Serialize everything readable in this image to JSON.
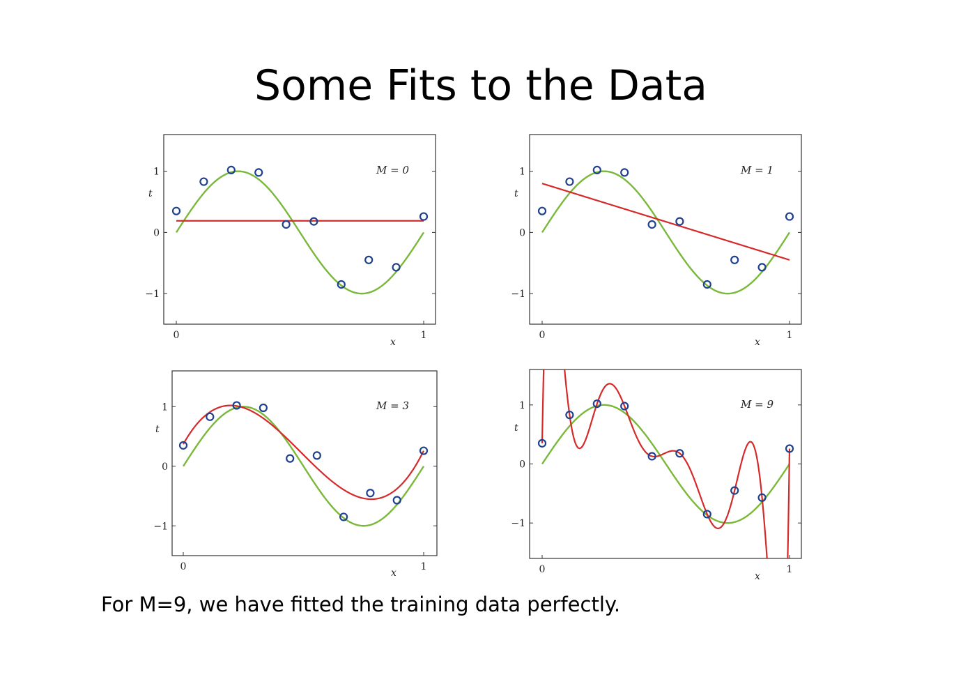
{
  "slide": {
    "title": "Some Fits to the Data",
    "caption": "For M=9, we have fitted the training data perfectly."
  },
  "colors": {
    "true_curve": "#7ab83a",
    "fit_curve": "#d42a2a",
    "points": "#1f3f8f",
    "frame": "#333333"
  },
  "chart_data": [
    {
      "type": "line",
      "label": "M = 0",
      "xlabel": "x",
      "ylabel": "t",
      "xlim": [
        0,
        1
      ],
      "ylim": [
        -1.5,
        1.6
      ],
      "xticks": [
        "0",
        "1"
      ],
      "yticks": [
        "−1",
        "0",
        "1"
      ],
      "ytick_values": [
        -1,
        0,
        1
      ],
      "points": {
        "x": [
          0,
          0.111,
          0.222,
          0.333,
          0.444,
          0.556,
          0.667,
          0.778,
          0.889,
          1
        ],
        "y": [
          0.35,
          0.83,
          1.02,
          0.98,
          0.13,
          0.18,
          -0.85,
          -0.45,
          -0.57,
          0.26
        ]
      },
      "true_curve": "sin(2*pi*x)",
      "fit": {
        "degree": 0,
        "coefficients": [
          0.19
        ]
      }
    },
    {
      "type": "line",
      "label": "M = 1",
      "xlabel": "x",
      "ylabel": "t",
      "xlim": [
        0,
        1
      ],
      "ylim": [
        -1.5,
        1.6
      ],
      "xticks": [
        "0",
        "1"
      ],
      "yticks": [
        "−1",
        "0",
        "1"
      ],
      "ytick_values": [
        -1,
        0,
        1
      ],
      "points": {
        "x": [
          0,
          0.111,
          0.222,
          0.333,
          0.444,
          0.556,
          0.667,
          0.778,
          0.889,
          1
        ],
        "y": [
          0.35,
          0.83,
          1.02,
          0.98,
          0.13,
          0.18,
          -0.85,
          -0.45,
          -0.57,
          0.26
        ]
      },
      "true_curve": "sin(2*pi*x)",
      "fit": {
        "degree": 1,
        "coefficients": [
          0.8,
          -1.25
        ]
      }
    },
    {
      "type": "line",
      "label": "M = 3",
      "xlabel": "x",
      "ylabel": "t",
      "xlim": [
        0,
        1
      ],
      "ylim": [
        -1.5,
        1.6
      ],
      "xticks": [
        "0",
        "1"
      ],
      "yticks": [
        "−1",
        "0",
        "1"
      ],
      "ytick_values": [
        -1,
        0,
        1
      ],
      "points": {
        "x": [
          0,
          0.111,
          0.222,
          0.333,
          0.444,
          0.556,
          0.667,
          0.778,
          0.889,
          1
        ],
        "y": [
          0.35,
          0.83,
          1.02,
          0.98,
          0.13,
          0.18,
          -0.85,
          -0.45,
          -0.57,
          0.26
        ]
      },
      "true_curve": "sin(2*pi*x)",
      "fit": {
        "degree": 3,
        "coefficients": [
          0.37,
          7.22,
          -22.98,
          15.65
        ]
      }
    },
    {
      "type": "line",
      "label": "M = 9",
      "xlabel": "x",
      "ylabel": "t",
      "xlim": [
        0,
        1
      ],
      "ylim": [
        -1.6,
        1.6
      ],
      "xticks": [
        "0",
        "1"
      ],
      "yticks": [
        "−1",
        "0",
        "1"
      ],
      "ytick_values": [
        -1,
        0,
        1
      ],
      "points": {
        "x": [
          0,
          0.111,
          0.222,
          0.333,
          0.444,
          0.556,
          0.667,
          0.778,
          0.889,
          1
        ],
        "y": [
          0.35,
          0.83,
          1.02,
          0.98,
          0.13,
          0.18,
          -0.85,
          -0.45,
          -0.57,
          0.26
        ]
      },
      "true_curve": "sin(2*pi*x)",
      "fit": {
        "degree": 9,
        "interpolates_points": true
      }
    }
  ]
}
